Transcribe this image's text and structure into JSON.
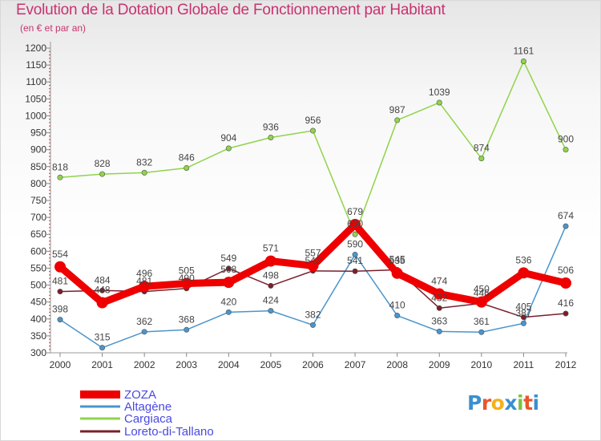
{
  "header": {
    "title": "Evolution de la Dotation Globale de Fonctionnement par Habitant",
    "subtitle": "(en € et par an)"
  },
  "brand": {
    "text": "Proxiti",
    "colors": [
      "#3a8fd0",
      "#e8562a",
      "#f3b21b",
      "#3a8fd0",
      "#7cc242",
      "#e8562a",
      "#3a8fd0"
    ]
  },
  "chart_data": {
    "type": "line",
    "title": "Evolution de la Dotation Globale de Fonctionnement par Habitant",
    "subtitle": "(en € et par an)",
    "xlabel": "",
    "ylabel": "",
    "x": [
      "2000",
      "2001",
      "2002",
      "2003",
      "2004",
      "2005",
      "2006",
      "2007",
      "2008",
      "2009",
      "2010",
      "2011",
      "2012"
    ],
    "y_ticks": [
      300,
      350,
      400,
      450,
      500,
      550,
      600,
      650,
      700,
      750,
      800,
      850,
      900,
      950,
      1000,
      1050,
      1100,
      1150,
      1200
    ],
    "ylim": [
      300,
      1200
    ],
    "grid": false,
    "legend_position": "bottom-left",
    "series": [
      {
        "name": "ZOZA",
        "color": "#ee0000",
        "emphasis": true,
        "values": [
          554,
          448,
          496,
          505,
          508,
          571,
          557,
          679,
          535,
          474,
          450,
          536,
          506
        ],
        "labels": [
          "554",
          "448",
          "496",
          "505",
          "508",
          "571",
          "557",
          "679",
          "535",
          "474",
          "450",
          "536",
          "506"
        ]
      },
      {
        "name": "Altagène",
        "color": "#4a95cc",
        "values": [
          398,
          315,
          362,
          368,
          420,
          424,
          382,
          590,
          410,
          363,
          361,
          387,
          674
        ],
        "labels": [
          "398",
          "315",
          "362",
          "368",
          "420",
          "424",
          "382",
          "590",
          "410",
          "363",
          "361",
          "387",
          "674"
        ]
      },
      {
        "name": "Cargiaca",
        "color": "#8fd44a",
        "values": [
          818,
          828,
          832,
          846,
          904,
          936,
          956,
          650,
          987,
          1039,
          874,
          1161,
          900
        ],
        "labels": [
          "818",
          "828",
          "832",
          "846",
          "904",
          "936",
          "956",
          "650",
          "987",
          "1039",
          "874",
          "1161",
          "900"
        ]
      },
      {
        "name": "Loreto-di-Tallano",
        "color": "#7a1f2a",
        "values": [
          481,
          484,
          481,
          490,
          549,
          498,
          542,
          541,
          545,
          432,
          446,
          405,
          416
        ],
        "labels": [
          "481",
          "484",
          "481",
          "490",
          "549",
          "498",
          "542",
          "541",
          "545",
          "432",
          "446",
          "405",
          "416"
        ]
      }
    ]
  }
}
